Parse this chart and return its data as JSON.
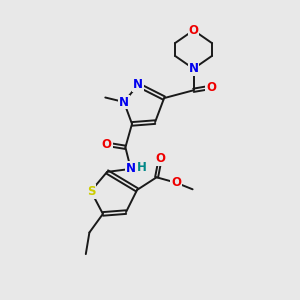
{
  "background_color": "#e8e8e8",
  "bond_color": "#1a1a1a",
  "atom_colors": {
    "N": "#0000ee",
    "O": "#ee0000",
    "S": "#cccc00",
    "H": "#008888",
    "C": "#1a1a1a"
  },
  "figsize": [
    3.0,
    3.0
  ],
  "dpi": 100,
  "xlim": [
    0,
    10
  ],
  "ylim": [
    0,
    10
  ]
}
